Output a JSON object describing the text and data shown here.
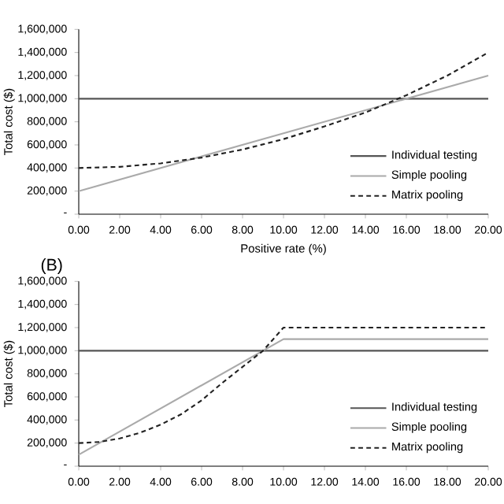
{
  "chart_data": [
    {
      "type": "line",
      "xlabel": "Positive rate (%)",
      "ylabel": "Total cost ($)",
      "legend": "bottom right",
      "xlim": [
        0,
        20
      ],
      "ylim": [
        0,
        1600000
      ],
      "xticks": [
        {
          "value": 0,
          "label": "0.00"
        },
        {
          "value": 2,
          "label": "2.00"
        },
        {
          "value": 4,
          "label": "4.00"
        },
        {
          "value": 6,
          "label": "6.00"
        },
        {
          "value": 8,
          "label": "8.00"
        },
        {
          "value": 10,
          "label": "10.00"
        },
        {
          "value": 12,
          "label": "12.00"
        },
        {
          "value": 14,
          "label": "14.00"
        },
        {
          "value": 16,
          "label": "16.00"
        },
        {
          "value": 18,
          "label": "18.00"
        },
        {
          "value": 20,
          "label": "20.00"
        }
      ],
      "yticks": [
        {
          "value": 0,
          "label": "-"
        },
        {
          "value": 200000,
          "label": "200,000"
        },
        {
          "value": 400000,
          "label": "400,000"
        },
        {
          "value": 600000,
          "label": "600,000"
        },
        {
          "value": 800000,
          "label": "800,000"
        },
        {
          "value": 1000000,
          "label": "1,000,000"
        },
        {
          "value": 1200000,
          "label": "1,200,000"
        },
        {
          "value": 1400000,
          "label": "1,400,000"
        },
        {
          "value": 1600000,
          "label": "1,600,000"
        }
      ],
      "series": [
        {
          "name": "Individual testing",
          "color": "#555555",
          "line_style": "solid",
          "x": [
            0,
            20
          ],
          "values": [
            1000000,
            1000000
          ]
        },
        {
          "name": "Simple pooling",
          "color": "#aaaaaa",
          "line_style": "solid",
          "x": [
            0,
            20
          ],
          "values": [
            200000,
            1200000
          ]
        },
        {
          "name": "Matrix pooling",
          "color": "#222222",
          "line_style": "dashed",
          "x": [
            0,
            2,
            4,
            6,
            8,
            10,
            12,
            14,
            15.6,
            16,
            18,
            20
          ],
          "values": [
            400000,
            410000,
            440000,
            490000,
            560000,
            650000,
            760000,
            880000,
            1000000,
            1030000,
            1200000,
            1400000
          ]
        }
      ]
    },
    {
      "type": "line",
      "title": "(B)",
      "ylabel": "Total cost ($)",
      "legend": "bottom right",
      "xlim": [
        0,
        20
      ],
      "ylim": [
        0,
        1600000
      ],
      "xticks": [
        {
          "value": 0,
          "label": "0.00"
        },
        {
          "value": 2,
          "label": "2.00"
        },
        {
          "value": 4,
          "label": "4.00"
        },
        {
          "value": 6,
          "label": "6.00"
        },
        {
          "value": 8,
          "label": "8.00"
        },
        {
          "value": 10,
          "label": "10.00"
        },
        {
          "value": 12,
          "label": "12.00"
        },
        {
          "value": 14,
          "label": "14.00"
        },
        {
          "value": 16,
          "label": "16.00"
        },
        {
          "value": 18,
          "label": "18.00"
        },
        {
          "value": 20,
          "label": "20.00"
        }
      ],
      "yticks": [
        {
          "value": 0,
          "label": "-"
        },
        {
          "value": 200000,
          "label": "200,000"
        },
        {
          "value": 400000,
          "label": "400,000"
        },
        {
          "value": 600000,
          "label": "600,000"
        },
        {
          "value": 800000,
          "label": "800,000"
        },
        {
          "value": 1000000,
          "label": "1,000,000"
        },
        {
          "value": 1200000,
          "label": "1,200,000"
        },
        {
          "value": 1400000,
          "label": "1,400,000"
        },
        {
          "value": 1600000,
          "label": "1,600,000"
        }
      ],
      "series": [
        {
          "name": "Individual testing",
          "color": "#555555",
          "line_style": "solid",
          "x": [
            0,
            20
          ],
          "values": [
            1000000,
            1000000
          ]
        },
        {
          "name": "Simple pooling",
          "color": "#aaaaaa",
          "line_style": "solid",
          "x": [
            0,
            10,
            20
          ],
          "values": [
            100000,
            1100000,
            1100000
          ]
        },
        {
          "name": "Matrix pooling",
          "color": "#222222",
          "line_style": "dashed",
          "x": [
            0,
            1,
            2,
            3,
            4,
            5,
            6,
            7,
            8,
            9,
            10,
            20
          ],
          "values": [
            200000,
            210000,
            240000,
            290000,
            360000,
            450000,
            570000,
            720000,
            860000,
            1000000,
            1200000,
            1200000
          ]
        }
      ]
    }
  ]
}
